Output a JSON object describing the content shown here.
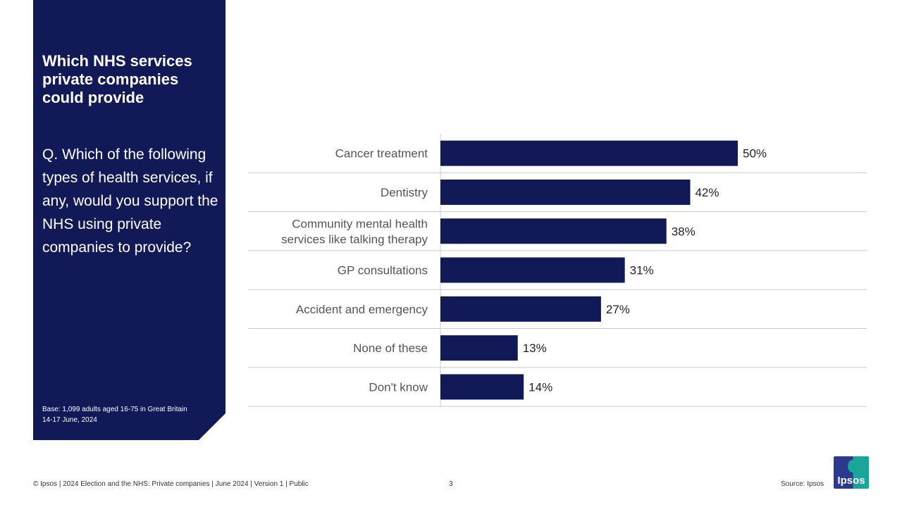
{
  "panel": {
    "title": "Which NHS services private companies could provide",
    "question": "Q. Which of the following types of health services, if any, would you support the NHS using private companies to provide?",
    "base": "Base: 1,099 adults aged 16-75 in Great Britain",
    "date": "14-17 June, 2024"
  },
  "chart_data": {
    "type": "bar",
    "orientation": "horizontal",
    "categories": [
      "Cancer treatment",
      "Dentistry",
      "Community mental health|services like talking therapy",
      "GP consultations",
      "Accident and emergency",
      "None of these",
      "Don't know"
    ],
    "values": [
      50,
      42,
      38,
      31,
      27,
      13,
      14
    ],
    "unit": "%",
    "bar_color": "#111a57",
    "xlim": [
      0,
      100
    ],
    "grid": "horizontal row separators"
  },
  "footer": {
    "left": "© Ipsos | 2024 Election and the NHS: Private companies | June 2024 | Version 1 | Public",
    "page": "3",
    "source": "Source: Ipsos",
    "logo": "Ipsos"
  },
  "colors": {
    "navy": "#111a57",
    "teal": "#1aa59a"
  }
}
